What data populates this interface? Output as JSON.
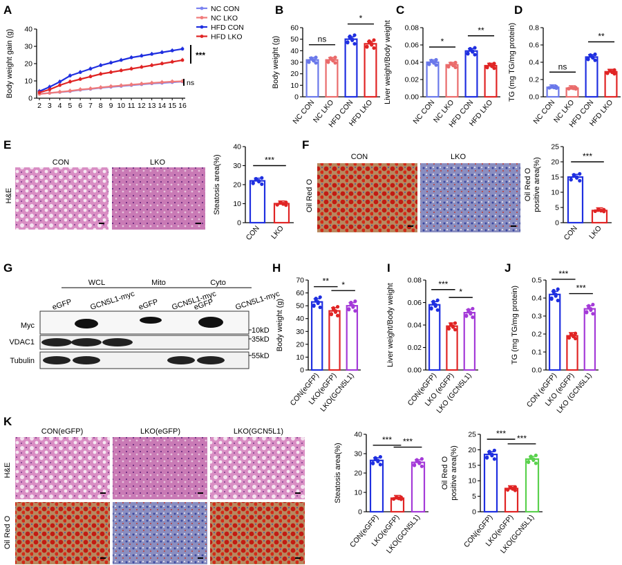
{
  "panel_letters": [
    "A",
    "B",
    "C",
    "D",
    "E",
    "F",
    "G",
    "H",
    "I",
    "J",
    "K"
  ],
  "colors": {
    "blue": "#1f2fe0",
    "red": "#e02424",
    "purple": "#a43ad8",
    "green": "#5ad14d",
    "lightblue": "#6a78ea",
    "lightred": "#ea6b6b",
    "nccon": "#7b83f0",
    "nclko": "#f07a7a"
  },
  "chart_data": [
    {
      "id": "A",
      "type": "line",
      "xlabel": "",
      "ylabel": "Body weight gain (g)",
      "x": [
        2,
        3,
        4,
        5,
        6,
        7,
        8,
        9,
        10,
        11,
        12,
        13,
        14,
        15,
        16
      ],
      "ylim": [
        0,
        40
      ],
      "yticks": [
        0,
        10,
        20,
        30,
        40
      ],
      "series": [
        {
          "name": "NC CON",
          "color": "#7b83f0",
          "values": [
            2.5,
            3.0,
            3.5,
            4.0,
            4.8,
            5.3,
            6.0,
            6.5,
            7.0,
            7.5,
            8.0,
            8.5,
            8.8,
            9.2,
            9.6
          ]
        },
        {
          "name": "NC LKO",
          "color": "#f07a7a",
          "values": [
            2.4,
            3.0,
            3.6,
            4.2,
            5.0,
            5.5,
            6.2,
            6.8,
            7.3,
            7.8,
            8.3,
            8.8,
            9.2,
            9.6,
            9.8
          ]
        },
        {
          "name": "HFD CON",
          "color": "#1f2fe0",
          "values": [
            4.0,
            6.5,
            9.5,
            13.0,
            15.0,
            17.0,
            19.0,
            20.5,
            22.0,
            23.5,
            24.5,
            25.5,
            26.5,
            27.5,
            28.5
          ]
        },
        {
          "name": "HFD LKO",
          "color": "#e02424",
          "values": [
            3.3,
            5.0,
            7.5,
            9.5,
            11.0,
            12.5,
            14.0,
            15.0,
            16.0,
            17.0,
            18.0,
            19.0,
            20.0,
            21.0,
            22.0
          ]
        }
      ],
      "annotations": [
        "***",
        "ns"
      ]
    },
    {
      "id": "B",
      "type": "bar",
      "ylabel": "Body weight (g)",
      "ylim": [
        0,
        60
      ],
      "yticks": [
        0,
        10,
        20,
        30,
        40,
        50,
        60
      ],
      "categories": [
        "NC CON",
        "NC LKO",
        "HFD CON",
        "HFD LKO"
      ],
      "values": [
        32,
        32,
        50,
        46
      ],
      "colors": [
        "#6a78ea",
        "#ea6b6b",
        "#1f2fe0",
        "#e02424"
      ],
      "annotations": [
        {
          "text": "ns",
          "between": [
            0,
            1
          ]
        },
        {
          "text": "*",
          "between": [
            2,
            3
          ]
        }
      ]
    },
    {
      "id": "C",
      "type": "bar",
      "ylabel": "Liver weight/Body weight",
      "ylim": [
        0,
        0.08
      ],
      "yticks": [
        "0.00",
        "0.02",
        "0.04",
        "0.06",
        "0.08"
      ],
      "categories": [
        "NC CON",
        "NC LKO",
        "HFD CON",
        "HFD LKO"
      ],
      "values": [
        0.04,
        0.037,
        0.053,
        0.036
      ],
      "colors": [
        "#6a78ea",
        "#ea6b6b",
        "#1f2fe0",
        "#e02424"
      ],
      "annotations": [
        {
          "text": "*",
          "between": [
            0,
            1
          ]
        },
        {
          "text": "**",
          "between": [
            2,
            3
          ]
        }
      ]
    },
    {
      "id": "D",
      "type": "bar",
      "ylabel": "TG (mg TG/mg protein)",
      "ylim": [
        0,
        0.8
      ],
      "yticks": [
        "0.0",
        "0.2",
        "0.4",
        "0.6",
        "0.8"
      ],
      "categories": [
        "NC CON",
        "NC LKO",
        "HFD CON",
        "HFD LKO"
      ],
      "values": [
        0.11,
        0.1,
        0.46,
        0.29
      ],
      "colors": [
        "#6a78ea",
        "#ea6b6b",
        "#1f2fe0",
        "#e02424"
      ],
      "annotations": [
        {
          "text": "ns",
          "between": [
            0,
            1
          ]
        },
        {
          "text": "**",
          "between": [
            2,
            3
          ]
        }
      ]
    },
    {
      "id": "E",
      "type": "bar",
      "ylabel": "Steatosis area(%)",
      "ylim": [
        0,
        40
      ],
      "yticks": [
        0,
        10,
        20,
        30,
        40
      ],
      "categories": [
        "CON",
        "LKO"
      ],
      "values": [
        22,
        10
      ],
      "colors": [
        "#1f2fe0",
        "#e02424"
      ],
      "annotations": [
        {
          "text": "***",
          "between": [
            0,
            1
          ]
        }
      ]
    },
    {
      "id": "F",
      "type": "bar",
      "ylabel": "Oil Red O positive area(%)",
      "ylim": [
        0,
        25
      ],
      "yticks": [
        0,
        5,
        10,
        15,
        20,
        25
      ],
      "categories": [
        "CON",
        "LKO"
      ],
      "values": [
        15,
        4
      ],
      "colors": [
        "#1f2fe0",
        "#e02424"
      ],
      "annotations": [
        {
          "text": "***",
          "between": [
            0,
            1
          ]
        }
      ]
    },
    {
      "id": "H",
      "type": "bar",
      "ylabel": "Body weight (g)",
      "ylim": [
        0,
        70
      ],
      "yticks": [
        0,
        10,
        20,
        30,
        40,
        50,
        60,
        70
      ],
      "categories": [
        "CON(eGFP)",
        "LKO(eGFP)",
        "LKO(GCN5L1)"
      ],
      "values": [
        53,
        46,
        50
      ],
      "colors": [
        "#1f2fe0",
        "#e02424",
        "#a43ad8"
      ],
      "annotations": [
        {
          "text": "**",
          "between": [
            0,
            1
          ]
        },
        {
          "text": "*",
          "between": [
            1,
            2
          ]
        }
      ]
    },
    {
      "id": "I",
      "type": "bar",
      "ylabel": "Liver weight/Body weight",
      "ylim": [
        0,
        0.08
      ],
      "yticks": [
        "0.00",
        "0.02",
        "0.04",
        "0.06",
        "0.08"
      ],
      "categories": [
        "CON(eGFP)",
        "LKO (eGFP)",
        "LKO (GCN5L1)"
      ],
      "values": [
        0.058,
        0.039,
        0.051
      ],
      "colors": [
        "#1f2fe0",
        "#e02424",
        "#a43ad8"
      ],
      "annotations": [
        {
          "text": "***",
          "between": [
            0,
            1
          ]
        },
        {
          "text": "*",
          "between": [
            1,
            2
          ]
        }
      ]
    },
    {
      "id": "J",
      "type": "bar",
      "ylabel": "TG (mg TG/mg protein)",
      "ylim": [
        0,
        0.5
      ],
      "yticks": [
        "0.0",
        "0.1",
        "0.2",
        "0.3",
        "0.4",
        "0.5"
      ],
      "categories": [
        "CON (eGFP)",
        "LKO (eGFP)",
        "LKO (GCN5L1)"
      ],
      "values": [
        0.42,
        0.19,
        0.34
      ],
      "colors": [
        "#1f2fe0",
        "#e02424",
        "#a43ad8"
      ],
      "annotations": [
        {
          "text": "***",
          "between": [
            0,
            1
          ]
        },
        {
          "text": "***",
          "between": [
            1,
            2
          ]
        }
      ]
    },
    {
      "id": "K1",
      "type": "bar",
      "ylabel": "Steatosis area(%)",
      "ylim": [
        0,
        40
      ],
      "yticks": [
        0,
        10,
        20,
        30,
        40
      ],
      "categories": [
        "CON(eGFP)",
        "LKO(eGFP)",
        "LKO(GCN5L1)"
      ],
      "values": [
        26.5,
        7,
        25.5
      ],
      "colors": [
        "#1f2fe0",
        "#e02424",
        "#a43ad8"
      ],
      "annotations": [
        {
          "text": "***",
          "between": [
            0,
            1
          ]
        },
        {
          "text": "***",
          "between": [
            1,
            2
          ]
        }
      ]
    },
    {
      "id": "K2",
      "type": "bar",
      "ylabel": "Oil Red O positive area(%)",
      "ylim": [
        0,
        25
      ],
      "yticks": [
        0,
        5,
        10,
        15,
        20,
        25
      ],
      "categories": [
        "CON(eGFP)",
        "LKO(eGFP)",
        "LKO(GCN5L1)"
      ],
      "values": [
        18.5,
        7.5,
        17
      ],
      "colors": [
        "#1f2fe0",
        "#e02424",
        "#5ad14d"
      ],
      "annotations": [
        {
          "text": "***",
          "between": [
            0,
            1
          ]
        },
        {
          "text": "***",
          "between": [
            1,
            2
          ]
        }
      ]
    }
  ],
  "histology": {
    "E": {
      "row_label": "H&E",
      "columns": [
        "CON",
        "LKO"
      ]
    },
    "F": {
      "row_label": "Oil Red O",
      "columns": [
        "CON",
        "LKO"
      ]
    },
    "K": {
      "row_labels": [
        "H&E",
        "Oil Red O"
      ],
      "columns": [
        "CON(eGFP)",
        "LKO(eGFP)",
        "LKO(GCN5L1)"
      ]
    }
  },
  "western_blot": {
    "groups": [
      "WCL",
      "Mito",
      "Cyto"
    ],
    "lanes": [
      "eGFP",
      "GCN5L1-myc",
      "eGFP",
      "GCN5L1-myc",
      "eGFP",
      "GCN5L1-myc"
    ],
    "rows": [
      "Myc",
      "VDAC1",
      "Tubulin"
    ],
    "markers": [
      "10kD",
      "35kD",
      "55kD"
    ]
  }
}
